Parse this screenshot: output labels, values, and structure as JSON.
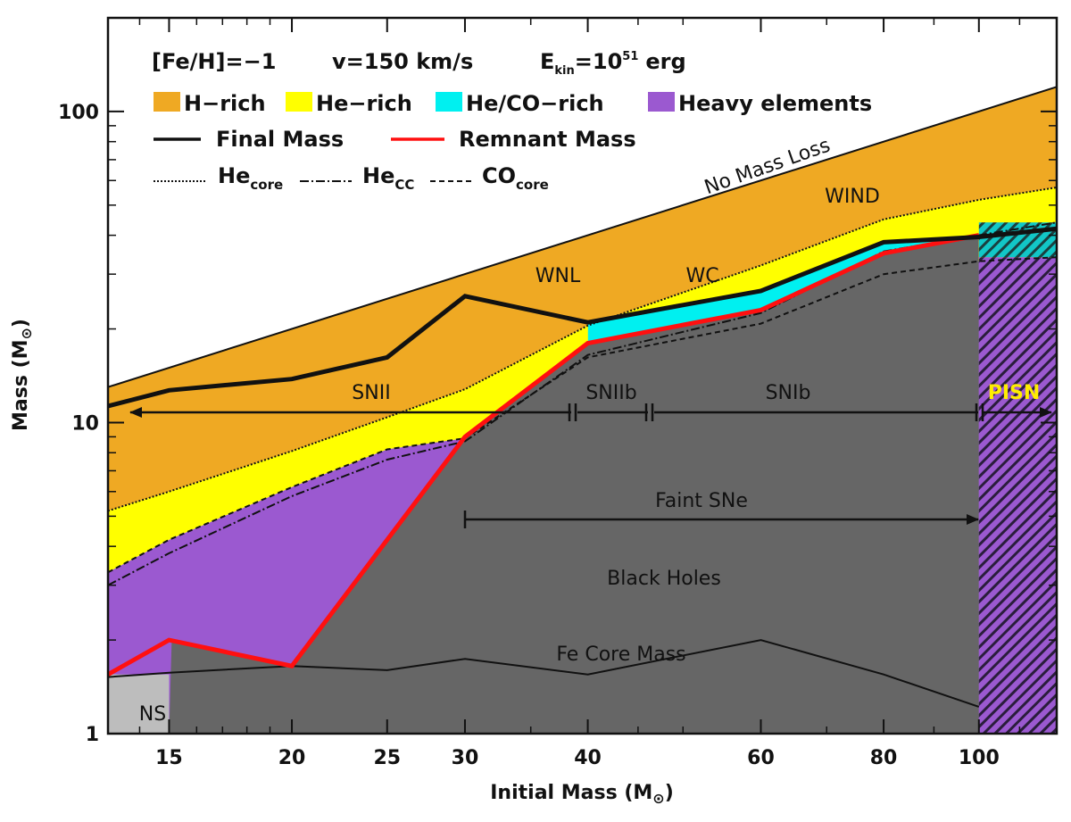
{
  "chart_data": {
    "type": "area",
    "xlabel_main": "Initial Mass (M",
    "xlabel_sym": "⊙",
    "xlabel_end": ")",
    "ylabel_main": "Mass (M",
    "ylabel_sym": "⊙",
    "ylabel_end": ")",
    "x_scale": "log",
    "y_scale": "log",
    "xlim": [
      13,
      120
    ],
    "ylim": [
      1,
      200
    ],
    "x_ticks": [
      15,
      20,
      25,
      30,
      40,
      60,
      80,
      100
    ],
    "x_tick_labels": [
      "15",
      "20",
      "25",
      "30",
      "40",
      "60",
      "80",
      "100"
    ],
    "y_ticks": [
      1,
      10,
      100
    ],
    "y_tick_labels": [
      "1",
      "10",
      "100"
    ],
    "header": {
      "feh": "[Fe/H]=−1",
      "vel": "v=150 km/s",
      "ekin_main": "E",
      "ekin_sub": "kin",
      "ekin_eq": "=10",
      "ekin_sup": "51",
      "ekin_unit": "erg"
    },
    "legend": {
      "fills": [
        {
          "label": "H−rich",
          "color": "#efa923"
        },
        {
          "label": "He−rich",
          "color": "#ffff00"
        },
        {
          "label": "He/CO−rich",
          "color": "#00f0f0"
        },
        {
          "label": "Heavy elements",
          "color": "#9b59d0"
        }
      ],
      "final_label": "Final Mass",
      "remnant_label": "Remnant Mass",
      "hecore_main": "He",
      "hecore_sub": "core",
      "hecc_main": "He",
      "hecc_sub": "CC",
      "cocore_main": "CO",
      "cocore_sub": "core"
    },
    "series": [
      {
        "key": "initial",
        "x": [
          13,
          120
        ],
        "y": [
          13,
          120
        ]
      },
      {
        "key": "he_core",
        "x": [
          13,
          15,
          20,
          25,
          30,
          40,
          60,
          80,
          100,
          120
        ],
        "y": [
          5.2,
          6.0,
          8.1,
          10.4,
          12.8,
          20.5,
          32.0,
          45.0,
          52.0,
          57.0
        ]
      },
      {
        "key": "he_cc",
        "x": [
          13,
          15,
          20,
          25,
          30,
          40,
          60,
          80,
          100,
          120
        ],
        "y": [
          3.0,
          3.8,
          5.8,
          7.6,
          8.7,
          16.5,
          22.5,
          35.5,
          40.0,
          44.0
        ]
      },
      {
        "key": "co_core",
        "x": [
          13,
          15,
          20,
          25,
          30,
          40,
          60,
          80,
          100,
          120
        ],
        "y": [
          3.3,
          4.2,
          6.2,
          8.2,
          8.9,
          16.2,
          20.8,
          30.0,
          33.0,
          34.0
        ]
      },
      {
        "key": "final",
        "x": [
          13,
          15,
          20,
          25,
          30,
          40,
          60,
          80,
          100,
          120
        ],
        "y": [
          11.3,
          12.7,
          13.8,
          16.2,
          25.5,
          21.0,
          26.5,
          38.0,
          39.5,
          42.0
        ]
      },
      {
        "key": "remnant",
        "x": [
          13,
          15,
          20,
          30,
          40,
          60,
          80,
          100
        ],
        "y": [
          1.55,
          2.0,
          1.65,
          9.0,
          18.0,
          23.0,
          35.0,
          40.0
        ]
      },
      {
        "key": "fe_core",
        "x": [
          13,
          15,
          20,
          25,
          30,
          40,
          60,
          80,
          100
        ],
        "y": [
          1.52,
          1.57,
          1.65,
          1.6,
          1.74,
          1.55,
          2.0,
          1.55,
          1.22
        ]
      }
    ],
    "annotations": {
      "no_mass_loss": "No Mass Loss",
      "wind": "WIND",
      "wnl": "WNL",
      "wc": "WC",
      "snii": "SNII",
      "sniib": "SNIIb",
      "snib": "SNIb",
      "pisn": "PISN",
      "faint": "Faint SNe",
      "bh": "Black Holes",
      "fe": "Fe Core Mass",
      "ns": "NS"
    }
  }
}
